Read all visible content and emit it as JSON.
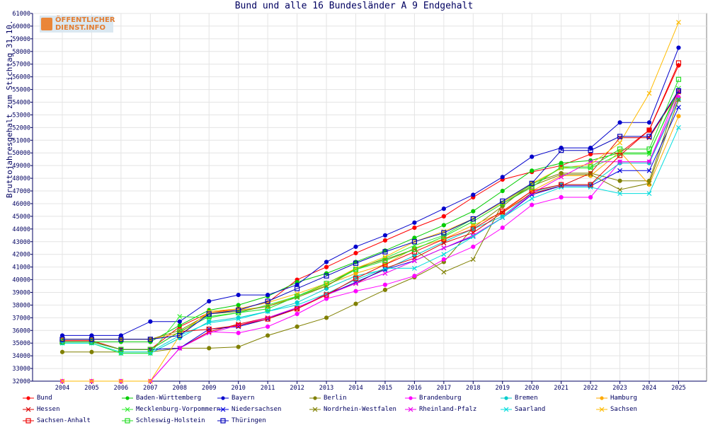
{
  "chart_data": {
    "type": "line",
    "title": "Bund und alle 16 Bundesländer A 9 Endgehalt",
    "xlabel": "",
    "ylabel": "Bruttojahresgehalt zum Stichtag 31.10.",
    "ylim": [
      32000,
      61000
    ],
    "yticks": [
      32000,
      33000,
      34000,
      35000,
      36000,
      37000,
      38000,
      39000,
      40000,
      41000,
      42000,
      43000,
      44000,
      45000,
      46000,
      47000,
      48000,
      49000,
      50000,
      51000,
      52000,
      53000,
      54000,
      55000,
      56000,
      57000,
      58000,
      59000,
      60000,
      61000
    ],
    "x": [
      "2004",
      "2005",
      "2006",
      "2007",
      "2008",
      "2009",
      "2010",
      "2011",
      "2012",
      "2013",
      "2014",
      "2015",
      "2016",
      "2017",
      "2018",
      "2019",
      "2020",
      "2021",
      "2022",
      "2023",
      "2024",
      "2025"
    ],
    "grid": true,
    "legend_position": "bottom",
    "series": [
      {
        "name": "Bund",
        "color": "#ff0000",
        "marker": "diamond",
        "values": [
          35200,
          35200,
          34500,
          34500,
          36300,
          37400,
          37700,
          38200,
          40000,
          41000,
          42100,
          43100,
          44100,
          45000,
          46500,
          47900,
          48500,
          49000,
          49900,
          50000,
          51800,
          56900
        ]
      },
      {
        "name": "Baden-Württemberg",
        "color": "#00cc00",
        "marker": "diamond",
        "values": [
          35100,
          35100,
          35100,
          35100,
          36400,
          37600,
          38000,
          38700,
          39800,
          40500,
          41400,
          42300,
          43300,
          44300,
          45400,
          47000,
          48600,
          49200,
          49400,
          50000,
          50000,
          54900
        ]
      },
      {
        "name": "Bayern",
        "color": "#0000cc",
        "marker": "diamond",
        "values": [
          35600,
          35600,
          35600,
          36700,
          36700,
          38300,
          38800,
          38800,
          39600,
          41400,
          42600,
          43500,
          44500,
          45600,
          46700,
          48100,
          49700,
          50400,
          50400,
          52400,
          52400,
          58300
        ]
      },
      {
        "name": "Berlin",
        "color": "#808000",
        "marker": "diamond",
        "values": [
          34300,
          34300,
          34300,
          34300,
          34600,
          34600,
          34700,
          35600,
          36300,
          37000,
          38100,
          39200,
          40200,
          41400,
          44100,
          45800,
          47600,
          48400,
          48400,
          47800,
          47800,
          54800
        ]
      },
      {
        "name": "Brandenburg",
        "color": "#ff00ff",
        "marker": "diamond",
        "values": [
          32000,
          32000,
          32000,
          32000,
          34600,
          35900,
          35800,
          36300,
          37300,
          38500,
          39100,
          39600,
          40300,
          41600,
          42600,
          44100,
          45900,
          46500,
          46500,
          49300,
          49300,
          54400
        ]
      },
      {
        "name": "Bremen",
        "color": "#00cccc",
        "marker": "diamond",
        "values": [
          35000,
          35000,
          34200,
          34200,
          35400,
          36700,
          37000,
          37500,
          38200,
          39300,
          40300,
          40800,
          41900,
          43000,
          44000,
          45000,
          46900,
          47500,
          47500,
          49200,
          49200,
          54200
        ]
      },
      {
        "name": "Hamburg",
        "color": "#ffaa00",
        "marker": "diamond",
        "values": [
          35300,
          35300,
          35300,
          35300,
          35800,
          37400,
          37600,
          37900,
          38700,
          39600,
          40500,
          41200,
          42500,
          43200,
          44300,
          45300,
          47000,
          48200,
          48200,
          50100,
          47500,
          52900
        ]
      },
      {
        "name": "Hessen",
        "color": "#dd0000",
        "marker": "x",
        "values": [
          35100,
          35100,
          34500,
          34500,
          34600,
          35900,
          36500,
          37000,
          37700,
          38900,
          39700,
          40900,
          41700,
          42900,
          43700,
          45300,
          46800,
          47400,
          48400,
          51200,
          51200,
          54800
        ]
      },
      {
        "name": "Mecklenburg-Vorpommern",
        "color": "#33ee33",
        "marker": "x",
        "values": [
          35000,
          35000,
          34200,
          34200,
          37100,
          37000,
          37400,
          38000,
          38700,
          39500,
          40800,
          41700,
          42700,
          43500,
          44800,
          46100,
          47500,
          48800,
          48800,
          49900,
          49900,
          55100
        ]
      },
      {
        "name": "Niedersachsen",
        "color": "#0000dd",
        "marker": "x",
        "values": [
          35100,
          35100,
          34500,
          34500,
          34600,
          36100,
          36300,
          36900,
          37800,
          38800,
          39800,
          40800,
          41500,
          42500,
          43400,
          44900,
          46700,
          47400,
          47400,
          48600,
          48600,
          53600
        ]
      },
      {
        "name": "Nordrhein-Westfalen",
        "color": "#808000",
        "marker": "x",
        "values": [
          35300,
          35300,
          35300,
          35300,
          36000,
          37300,
          37500,
          37900,
          38600,
          39500,
          40900,
          41600,
          42400,
          40600,
          41600,
          46000,
          47400,
          48300,
          48300,
          47100,
          47600,
          54200
        ]
      },
      {
        "name": "Rheinland-Pfalz",
        "color": "#ee00ee",
        "marker": "x",
        "values": [
          32000,
          32000,
          32000,
          32000,
          34600,
          35800,
          36400,
          37000,
          37800,
          38800,
          39700,
          40500,
          41500,
          42500,
          43500,
          44900,
          46800,
          48100,
          49300,
          49300,
          49300,
          54900
        ]
      },
      {
        "name": "Saarland",
        "color": "#00dddd",
        "marker": "x",
        "values": [
          35000,
          35000,
          34300,
          34300,
          35600,
          36600,
          36900,
          37500,
          38000,
          38900,
          40000,
          40900,
          40900,
          42000,
          43400,
          44900,
          46400,
          47300,
          47300,
          46800,
          46800,
          52000
        ]
      },
      {
        "name": "Sachsen",
        "color": "#ffbb00",
        "marker": "x",
        "values": [
          32000,
          32000,
          32000,
          32000,
          35600,
          37500,
          37700,
          38200,
          38900,
          39700,
          40900,
          41800,
          43000,
          43800,
          44800,
          46100,
          47600,
          48800,
          49100,
          50800,
          54700,
          60300
        ]
      },
      {
        "name": "Sachsen-Anhalt",
        "color": "#ee0000",
        "marker": "square",
        "values": [
          35100,
          35100,
          34500,
          34500,
          35900,
          36100,
          36400,
          36900,
          37700,
          38800,
          40100,
          41200,
          42200,
          43200,
          44000,
          45400,
          47000,
          47500,
          47500,
          49800,
          51800,
          57100
        ]
      },
      {
        "name": "Schleswig-Holstein",
        "color": "#22dd22",
        "marker": "square",
        "values": [
          35100,
          35100,
          34500,
          34500,
          35900,
          37100,
          37400,
          37700,
          38700,
          39700,
          40800,
          41500,
          42400,
          43400,
          44600,
          46000,
          47300,
          48900,
          48900,
          50300,
          50300,
          55800
        ]
      },
      {
        "name": "Thüringen",
        "color": "#0000bb",
        "marker": "square",
        "values": [
          35300,
          35300,
          35300,
          35300,
          35600,
          37300,
          37600,
          38300,
          39300,
          40300,
          41300,
          42200,
          43000,
          43700,
          44800,
          46200,
          47600,
          50200,
          50200,
          51300,
          51300,
          54900
        ]
      }
    ]
  },
  "logo": {
    "line1": "ÖFFENTLICHER",
    "line2": "DIENST.INFO"
  }
}
